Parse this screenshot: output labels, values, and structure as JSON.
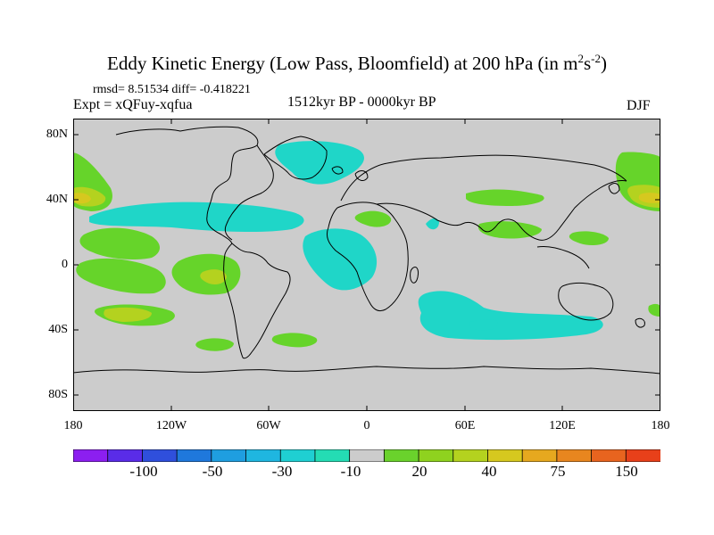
{
  "title": {
    "main": "Eddy Kinetic Energy (Low Pass, Bloomfield) at 200 hPa (in m",
    "sup1": "2",
    "mid": "s",
    "sup2": "-2",
    "end": ")"
  },
  "stats": "rmsd= 8.51534 diff= -0.418221",
  "experiment": "Expt = xQFuy-xqfua",
  "period": "1512kyr BP - 0000kyr BP",
  "season": "DJF",
  "lat_labels": [
    "80N",
    "40N",
    "0",
    "40S",
    "80S"
  ],
  "lon_labels": [
    "180",
    "120W",
    "60W",
    "0",
    "60E",
    "120E",
    "180"
  ],
  "colorbar": {
    "colors": [
      "#8c1ff0",
      "#5a2ce8",
      "#2f4fdc",
      "#1f78dc",
      "#1f9ee0",
      "#1fb6e0",
      "#1fcfd2",
      "#24dcb4",
      "#cccccc",
      "#6ad22c",
      "#8fd21f",
      "#b4d21f",
      "#d6c81f",
      "#e6a81f",
      "#e8861f",
      "#e8641f",
      "#e8401a"
    ],
    "labels": [
      "-100",
      "-50",
      "-30",
      "-10",
      "20",
      "40",
      "75",
      "150"
    ]
  },
  "colors": {
    "land_ocean_fill": "#cccccc",
    "cyan_contour": "#1fd6c8",
    "green_contour": "#66d42a",
    "yellowgreen_contour": "#b4d21f",
    "yellow_contour": "#d6c81f",
    "coastline": "#000000"
  }
}
